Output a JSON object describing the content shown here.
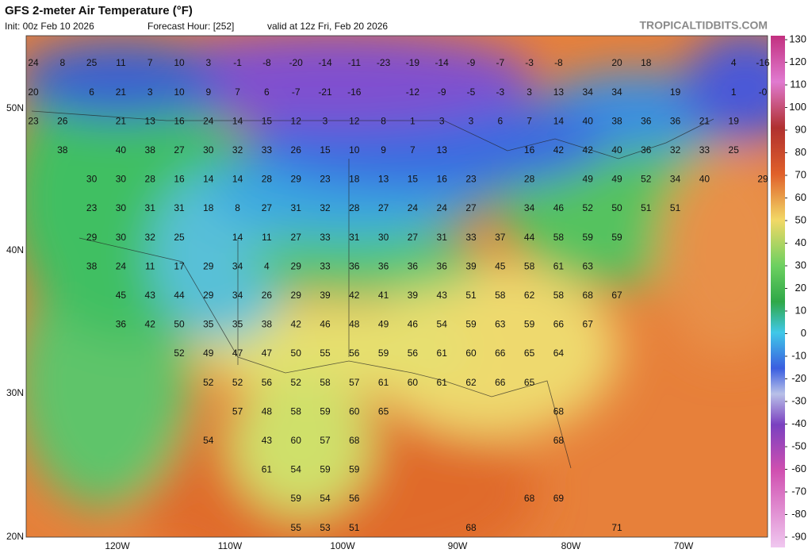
{
  "header": {
    "title": "GFS 2-meter Air Temperature (°F)",
    "init": "Init: 00z Feb 10 2026",
    "forecast_hour": "Forecast Hour: [252]",
    "valid": "valid at 12z Fri, Feb 20 2026",
    "watermark": "TROPICALTIDBITS.COM"
  },
  "map": {
    "latitude_labels": [
      "50N",
      "40N",
      "30N",
      "20N"
    ],
    "longitude_labels": [
      "120W",
      "110W",
      "100W",
      "90W",
      "80W",
      "70W"
    ],
    "temperatures": [
      [
        24,
        8,
        25,
        11,
        7,
        10,
        3,
        -1,
        -8,
        -20,
        -14,
        -11,
        -23,
        -19,
        -14,
        -9,
        -7,
        -3,
        -8,
        null,
        20,
        18,
        null,
        null,
        4,
        -16
      ],
      [
        20,
        null,
        6,
        21,
        3,
        10,
        9,
        7,
        6,
        -7,
        -21,
        -16,
        null,
        -12,
        -9,
        -5,
        -3,
        3,
        13,
        34,
        34,
        null,
        19,
        null,
        1,
        {
          "value": 0,
          "label": "-0"
        }
      ],
      [
        23,
        26,
        null,
        21,
        13,
        16,
        24,
        14,
        15,
        12,
        3,
        12,
        8,
        1,
        3,
        3,
        6,
        7,
        14,
        40,
        38,
        36,
        36,
        21,
        19
      ],
      [
        null,
        38,
        null,
        40,
        38,
        27,
        30,
        32,
        33,
        26,
        15,
        10,
        9,
        7,
        13,
        null,
        null,
        16,
        42,
        42,
        40,
        36,
        32,
        33,
        25
      ],
      [
        null,
        null,
        30,
        30,
        28,
        16,
        14,
        14,
        28,
        29,
        23,
        18,
        13,
        15,
        16,
        23,
        null,
        28,
        null,
        49,
        49,
        52,
        34,
        40,
        null,
        29
      ],
      [
        null,
        null,
        23,
        30,
        31,
        31,
        18,
        8,
        27,
        31,
        32,
        28,
        27,
        24,
        24,
        27,
        null,
        34,
        46,
        52,
        50,
        51,
        51
      ],
      [
        null,
        null,
        29,
        30,
        32,
        25,
        null,
        14,
        11,
        27,
        33,
        31,
        30,
        27,
        31,
        33,
        37,
        44,
        58,
        59,
        59
      ],
      [
        null,
        null,
        38,
        24,
        11,
        17,
        29,
        34,
        4,
        29,
        33,
        36,
        36,
        36,
        36,
        39,
        45,
        58,
        61,
        63
      ],
      [
        null,
        null,
        null,
        45,
        43,
        44,
        29,
        34,
        26,
        29,
        39,
        42,
        41,
        39,
        43,
        51,
        58,
        62,
        58,
        68,
        67
      ],
      [
        null,
        null,
        null,
        36,
        42,
        50,
        35,
        35,
        38,
        42,
        46,
        48,
        49,
        46,
        54,
        59,
        63,
        59,
        66,
        67
      ],
      [
        null,
        null,
        null,
        null,
        null,
        52,
        49,
        47,
        47,
        50,
        55,
        56,
        59,
        56,
        61,
        60,
        66,
        65,
        64
      ],
      [
        null,
        null,
        null,
        null,
        null,
        null,
        52,
        52,
        56,
        52,
        58,
        57,
        61,
        60,
        61,
        62,
        66,
        65
      ],
      [
        null,
        null,
        null,
        null,
        null,
        null,
        null,
        57,
        48,
        58,
        59,
        60,
        65,
        null,
        null,
        null,
        null,
        null,
        68
      ],
      [
        null,
        null,
        null,
        null,
        null,
        null,
        54,
        null,
        43,
        60,
        57,
        68,
        null,
        null,
        null,
        null,
        null,
        null,
        68
      ],
      [
        null,
        null,
        null,
        null,
        null,
        null,
        null,
        null,
        61,
        54,
        59,
        59
      ],
      [
        null,
        null,
        null,
        null,
        null,
        null,
        null,
        null,
        null,
        59,
        54,
        56,
        null,
        null,
        null,
        null,
        null,
        68,
        69
      ],
      [
        null,
        null,
        null,
        null,
        null,
        null,
        null,
        null,
        null,
        55,
        53,
        51,
        null,
        null,
        null,
        68,
        null,
        null,
        null,
        null,
        71
      ]
    ]
  },
  "colorbar": {
    "lim": [
      -90,
      130
    ],
    "ticks": [
      130,
      120,
      110,
      100,
      90,
      80,
      70,
      60,
      50,
      40,
      30,
      20,
      10,
      0,
      -10,
      -20,
      -30,
      -40,
      -50,
      -60,
      -70,
      -80,
      -90
    ]
  }
}
